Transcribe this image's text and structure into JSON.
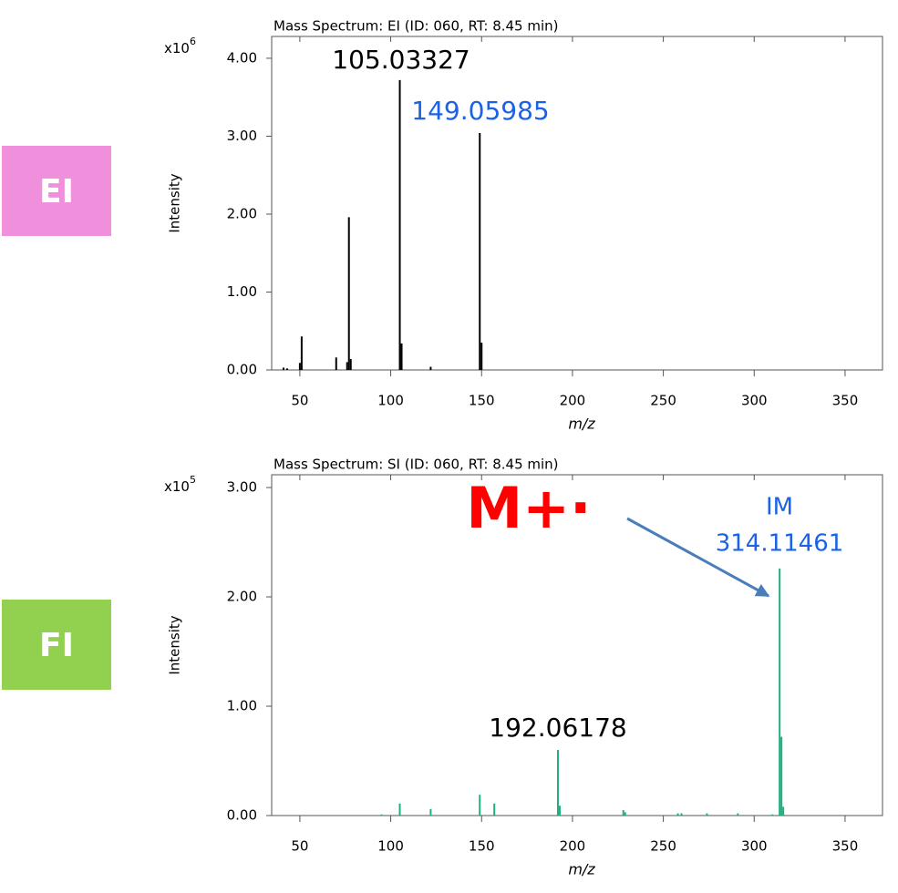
{
  "chart_data": [
    {
      "type": "bar",
      "badge": "EI",
      "badge_color": "#f08fdc",
      "title": "Mass Spectrum: EI (ID: 060, RT: 8.45 min)",
      "x_label": "m/z",
      "y_label": "Intensity",
      "multiplier": "x10",
      "multiplier_exp": "6",
      "color": "#000000",
      "x": [
        41,
        43,
        50,
        51,
        70,
        76,
        77,
        78,
        105,
        106,
        122,
        149,
        150
      ],
      "values": [
        0.03,
        0.02,
        0.09,
        0.43,
        0.16,
        0.1,
        1.96,
        0.14,
        3.72,
        0.34,
        0.04,
        3.04,
        0.35
      ],
      "xlim": [
        34.5,
        370.6
      ],
      "xticks": [
        50,
        100,
        150,
        200,
        250,
        300,
        350
      ],
      "ylim": [
        0,
        4.28
      ],
      "yticks": [
        {
          "value": 0,
          "label": "0.00"
        },
        {
          "value": 1,
          "label": "1.00"
        },
        {
          "value": 2,
          "label": "2.00"
        },
        {
          "value": 3,
          "label": "3.00"
        },
        {
          "value": 4,
          "label": "4.00"
        }
      ],
      "annotations": [
        {
          "text": "105.03327",
          "color": "#000000"
        },
        {
          "text": "149.05985",
          "color": "#1a62e6"
        }
      ]
    },
    {
      "type": "bar",
      "badge": "FI",
      "badge_color": "#92d050",
      "title": "Mass Spectrum: SI (ID: 060, RT: 8.45 min)",
      "x_label": "m/z",
      "y_label": "Intensity",
      "multiplier": "x10",
      "multiplier_exp": "5",
      "color": "#1fae7f",
      "x": [
        95,
        105,
        122,
        149,
        157,
        192,
        193,
        228,
        229,
        258,
        260,
        274,
        291,
        310,
        314,
        315,
        316
      ],
      "values": [
        0.01,
        0.11,
        0.06,
        0.19,
        0.11,
        0.6,
        0.09,
        0.05,
        0.03,
        0.02,
        0.02,
        0.02,
        0.02,
        0.01,
        2.26,
        0.72,
        0.08
      ],
      "xlim": [
        34.5,
        370.6
      ],
      "xticks": [
        50,
        100,
        150,
        200,
        250,
        300,
        350
      ],
      "ylim": [
        0,
        3.117
      ],
      "yticks": [
        {
          "value": 0,
          "label": "0.00"
        },
        {
          "value": 1,
          "label": "1.00"
        },
        {
          "value": 2,
          "label": "2.00"
        },
        {
          "value": 3,
          "label": "3.00"
        }
      ],
      "annotations": [
        {
          "text": "M+·",
          "color": "#ff0000"
        },
        {
          "text": "IM",
          "color": "#1a62e6"
        },
        {
          "text": "314.11461",
          "color": "#1a62e6"
        },
        {
          "text": "192.06178",
          "color": "#000000"
        }
      ]
    }
  ]
}
